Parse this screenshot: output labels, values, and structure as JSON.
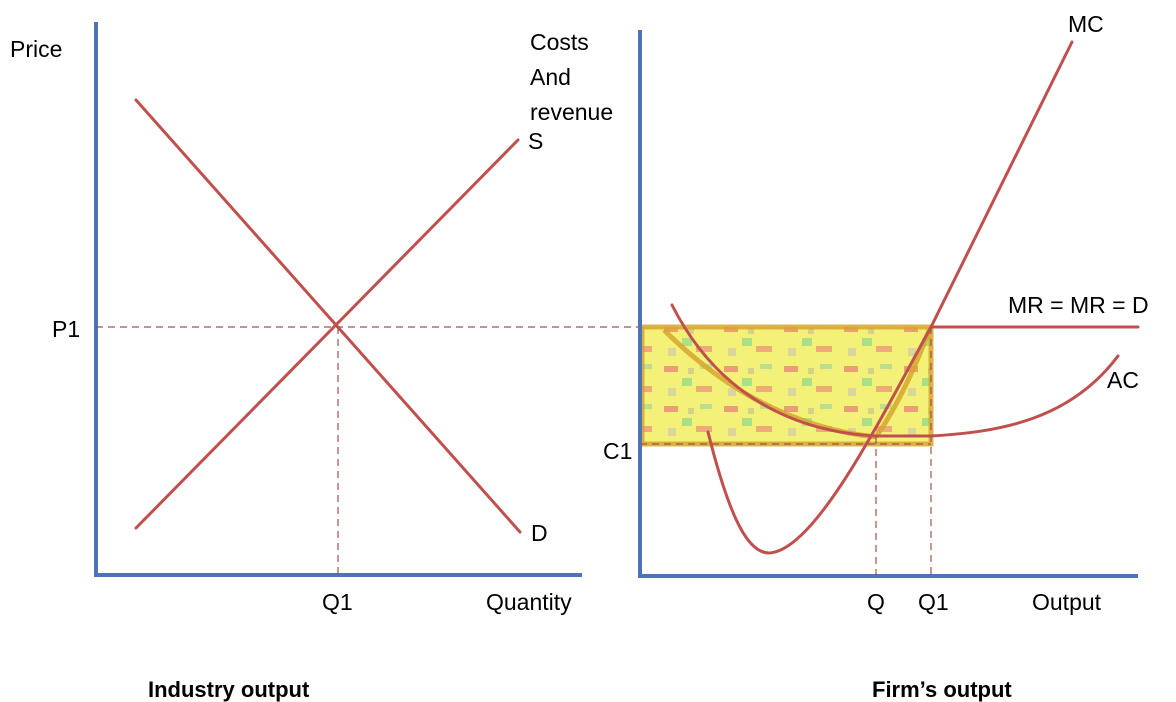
{
  "colors": {
    "axis": "#4f73b8",
    "curve": "#c0504d",
    "highlight_border": "#d6a62c",
    "highlight_fill": "#f3ef6a"
  },
  "industry": {
    "y_axis_label": "Price",
    "x_axis_label": "Quantity",
    "supply_label": "S",
    "demand_label": "D",
    "price_label": "P1",
    "quantity_label": "Q1",
    "caption": "Industry output"
  },
  "firm": {
    "y_axis_label_line1": "Costs",
    "y_axis_label_line2": "And",
    "y_axis_label_line3": "revenue",
    "x_axis_label": "Output",
    "mc_label": "MC",
    "ac_label": "AC",
    "mr_label": "MR = MR = D",
    "cost_label": "C1",
    "q_label": "Q",
    "q1_label": "Q1",
    "caption": "Firm’s output"
  }
}
